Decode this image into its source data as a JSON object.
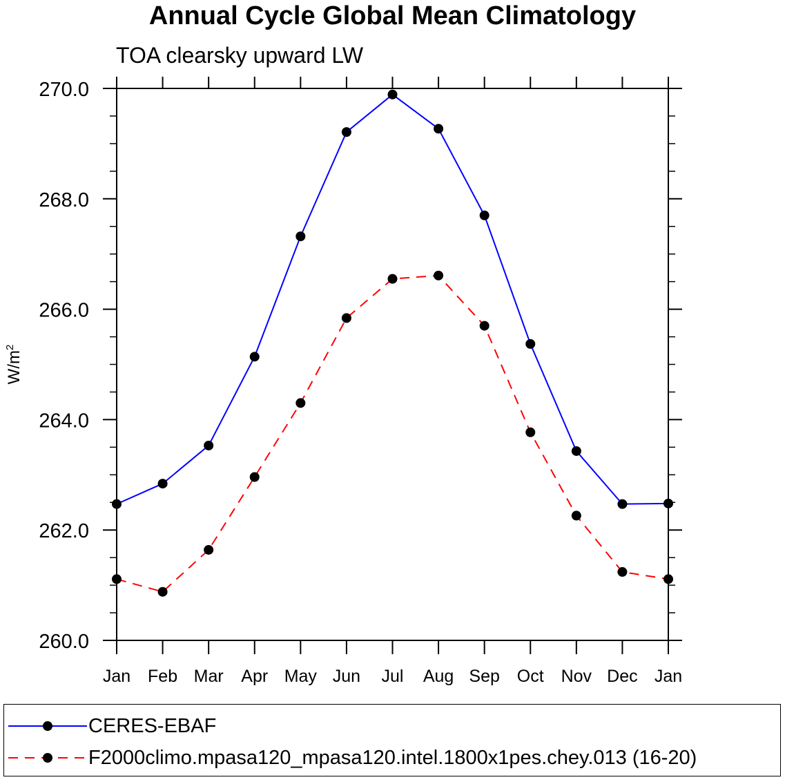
{
  "chart_data": {
    "type": "line",
    "title": "Annual Cycle Global Mean Climatology",
    "subtitle": "TOA clearsky upward LW",
    "ylabel_base": "W/m",
    "ylabel_sup": "2",
    "categories": [
      "Jan",
      "Feb",
      "Mar",
      "Apr",
      "May",
      "Jun",
      "Jul",
      "Aug",
      "Sep",
      "Oct",
      "Nov",
      "Dec",
      "Jan"
    ],
    "ylim": [
      260.0,
      270.0
    ],
    "yticks": [
      "260.0",
      "262.0",
      "264.0",
      "266.0",
      "268.0",
      "270.0"
    ],
    "series": [
      {
        "name": "CERES-EBAF",
        "color": "#0000ff",
        "dash": "solid",
        "values": [
          262.47,
          262.84,
          263.53,
          265.14,
          267.32,
          269.21,
          269.89,
          269.27,
          267.7,
          265.37,
          263.43,
          262.47,
          262.48
        ]
      },
      {
        "name": "F2000climo.mpasa120_mpasa120.intel.1800x1pes.chey.013 (16-20)",
        "color": "#ff0000",
        "dash": "dashed",
        "values": [
          261.11,
          260.88,
          261.64,
          262.96,
          264.3,
          265.84,
          266.55,
          266.61,
          265.7,
          263.77,
          262.26,
          261.24,
          261.11
        ]
      }
    ]
  }
}
